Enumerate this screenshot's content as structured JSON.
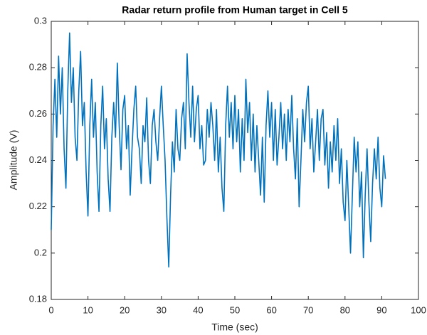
{
  "chart_data": {
    "type": "line",
    "title": "Radar return profile from Human target in Cell 5",
    "x_label": "Time (sec)",
    "y_label": "Amplitude (V)",
    "xlim": [
      0,
      100
    ],
    "xticks": [
      0,
      10,
      20,
      30,
      40,
      50,
      60,
      70,
      80,
      90,
      100
    ],
    "ylim": [
      0.18,
      0.3
    ],
    "yticks": [
      0.18,
      0.2,
      0.22,
      0.24,
      0.26,
      0.28,
      0.3
    ],
    "grid": false,
    "x": [
      0,
      0.5,
      1,
      1.5,
      2,
      2.5,
      3,
      3.5,
      4,
      4.5,
      5,
      5.5,
      6,
      6.5,
      7,
      7.5,
      8,
      8.5,
      9,
      9.5,
      10,
      10.5,
      11,
      11.5,
      12,
      12.5,
      13,
      13.5,
      14,
      14.5,
      15,
      15.5,
      16,
      16.5,
      17,
      17.5,
      18,
      18.5,
      19,
      19.5,
      20,
      20.5,
      21,
      21.5,
      22,
      22.5,
      23,
      23.5,
      24,
      24.5,
      25,
      25.5,
      26,
      26.5,
      27,
      27.5,
      28,
      28.5,
      29,
      29.5,
      30,
      30.5,
      31,
      31.5,
      32,
      32.5,
      33,
      33.5,
      34,
      34.5,
      35,
      35.5,
      36,
      36.5,
      37,
      37.5,
      38,
      38.5,
      39,
      39.5,
      40,
      40.5,
      41,
      41.5,
      42,
      42.5,
      43,
      43.5,
      44,
      44.5,
      45,
      45.5,
      46,
      46.5,
      47,
      47.5,
      48,
      48.5,
      49,
      49.5,
      50,
      50.5,
      51,
      51.5,
      52,
      52.5,
      53,
      53.5,
      54,
      54.5,
      55,
      55.5,
      56,
      56.5,
      57,
      57.5,
      58,
      58.5,
      59,
      59.5,
      60,
      60.5,
      61,
      61.5,
      62,
      62.5,
      63,
      63.5,
      64,
      64.5,
      65,
      65.5,
      66,
      66.5,
      67,
      67.5,
      68,
      68.5,
      69,
      69.5,
      70,
      70.5,
      71,
      71.5,
      72,
      72.5,
      73,
      73.5,
      74,
      74.5,
      75,
      75.5,
      76,
      76.5,
      77,
      77.5,
      78,
      78.5,
      79,
      79.5,
      80,
      80.5,
      81,
      81.5,
      82,
      82.5,
      83,
      83.5,
      84,
      84.5,
      85,
      85.5,
      86,
      86.5,
      87,
      87.5,
      88,
      88.5,
      89,
      89.5,
      90,
      90.5,
      91
    ],
    "series": [
      {
        "name": "Amplitude",
        "color": "#0072bd",
        "values": [
          0.21,
          0.255,
          0.275,
          0.25,
          0.285,
          0.26,
          0.28,
          0.245,
          0.228,
          0.27,
          0.295,
          0.265,
          0.28,
          0.25,
          0.24,
          0.27,
          0.287,
          0.255,
          0.265,
          0.235,
          0.216,
          0.255,
          0.275,
          0.25,
          0.265,
          0.235,
          0.218,
          0.255,
          0.272,
          0.245,
          0.258,
          0.232,
          0.218,
          0.25,
          0.265,
          0.25,
          0.282,
          0.255,
          0.236,
          0.262,
          0.268,
          0.245,
          0.255,
          0.225,
          0.245,
          0.262,
          0.272,
          0.25,
          0.245,
          0.23,
          0.255,
          0.248,
          0.267,
          0.24,
          0.23,
          0.255,
          0.262,
          0.248,
          0.24,
          0.258,
          0.272,
          0.255,
          0.24,
          0.215,
          0.194,
          0.225,
          0.248,
          0.235,
          0.262,
          0.245,
          0.24,
          0.258,
          0.265,
          0.245,
          0.286,
          0.265,
          0.25,
          0.272,
          0.248,
          0.262,
          0.268,
          0.245,
          0.255,
          0.238,
          0.24,
          0.262,
          0.25,
          0.265,
          0.255,
          0.24,
          0.262,
          0.235,
          0.25,
          0.228,
          0.218,
          0.255,
          0.272,
          0.25,
          0.265,
          0.245,
          0.268,
          0.248,
          0.262,
          0.235,
          0.258,
          0.24,
          0.275,
          0.252,
          0.265,
          0.24,
          0.26,
          0.235,
          0.255,
          0.24,
          0.225,
          0.25,
          0.222,
          0.255,
          0.27,
          0.25,
          0.265,
          0.24,
          0.262,
          0.238,
          0.25,
          0.265,
          0.245,
          0.26,
          0.24,
          0.262,
          0.248,
          0.268,
          0.245,
          0.232,
          0.258,
          0.22,
          0.24,
          0.262,
          0.248,
          0.265,
          0.272,
          0.245,
          0.258,
          0.235,
          0.248,
          0.262,
          0.24,
          0.258,
          0.262,
          0.238,
          0.252,
          0.228,
          0.248,
          0.235,
          0.255,
          0.24,
          0.258,
          0.23,
          0.245,
          0.222,
          0.214,
          0.24,
          0.22,
          0.2,
          0.225,
          0.25,
          0.235,
          0.248,
          0.22,
          0.235,
          0.198,
          0.225,
          0.245,
          0.222,
          0.205,
          0.23,
          0.245,
          0.232,
          0.25,
          0.228,
          0.22,
          0.242,
          0.232
        ]
      }
    ]
  }
}
